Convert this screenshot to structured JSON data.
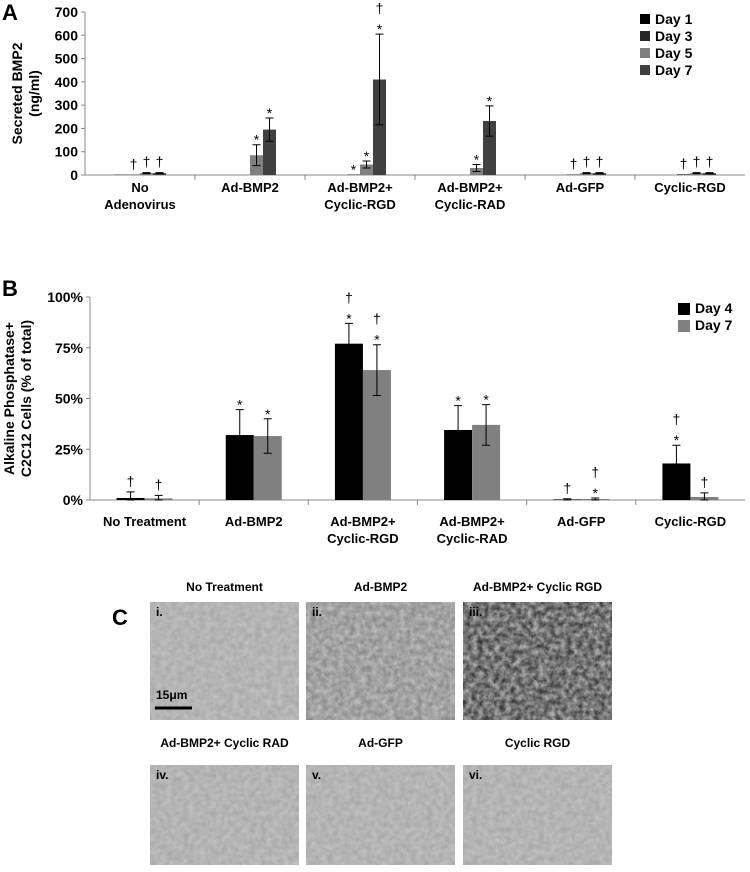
{
  "panel_labels": [
    "A",
    "B",
    "C"
  ],
  "chart_data": [
    {
      "type": "bar",
      "ylabel": "Secreted BMP2\n(ng/ml)",
      "categories": [
        "No\nAdenovirus",
        "Ad-BMP2",
        "Ad-BMP2+\nCyclic-RGD",
        "Ad-BMP2+\nCyclic-RAD",
        "Ad-GFP",
        "Cyclic-RGD"
      ],
      "ylim": [
        0,
        700
      ],
      "yticks": [
        0,
        100,
        200,
        300,
        400,
        500,
        600,
        700
      ],
      "legend": "top-right",
      "series": [
        {
          "name": "Day 1",
          "color": "#000000",
          "values": [
            1,
            0,
            0,
            0,
            0,
            0
          ],
          "errors": [
            null,
            null,
            null,
            null,
            null,
            null
          ],
          "markers": [
            null,
            null,
            null,
            null,
            null,
            null
          ]
        },
        {
          "name": "Day 3",
          "color": "#262626",
          "values": [
            1,
            0,
            2,
            0,
            2,
            3
          ],
          "errors": [
            null,
            null,
            null,
            null,
            null,
            null
          ],
          "markers": [
            [
              "†"
            ],
            null,
            [
              "*"
            ],
            null,
            [
              "†"
            ],
            [
              "†"
            ]
          ]
        },
        {
          "name": "Day 5",
          "color": "#7f7f7f",
          "values": [
            8,
            85,
            45,
            30,
            8,
            8
          ],
          "errors": [
            2,
            45,
            15,
            15,
            2,
            2
          ],
          "markers": [
            [
              "†"
            ],
            [
              "*"
            ],
            [
              "*"
            ],
            [
              "*"
            ],
            [
              "†"
            ],
            [
              "†"
            ]
          ]
        },
        {
          "name": "Day 7",
          "color": "#404040",
          "values": [
            8,
            195,
            410,
            232,
            8,
            8
          ],
          "errors": [
            2,
            50,
            195,
            65,
            2,
            2
          ],
          "markers": [
            [
              "†"
            ],
            [
              "*"
            ],
            [
              "†",
              "*"
            ],
            [
              "*"
            ],
            [
              "†"
            ],
            [
              "†"
            ]
          ]
        }
      ]
    },
    {
      "type": "bar",
      "ylabel": "Alkaline Phosphatase+\nC2C12 Cells (% of total)",
      "categories": [
        "No Treatment",
        "Ad-BMP2",
        "Ad-BMP2+\nCyclic-RGD",
        "Ad-BMP2+\nCyclic-RAD",
        "Ad-GFP",
        "Cyclic-RGD"
      ],
      "ylim": [
        0,
        100
      ],
      "yticks": [
        {
          "value": 0,
          "label": "0%"
        },
        {
          "value": 25,
          "label": "25%"
        },
        {
          "value": 50,
          "label": "50%"
        },
        {
          "value": 75,
          "label": "75%"
        },
        {
          "value": 100,
          "label": "100%"
        }
      ],
      "legend": "top-right",
      "series": [
        {
          "name": "Day 4",
          "color": "#000000",
          "values": [
            1,
            32,
            77,
            34.5,
            0.3,
            18
          ],
          "errors": [
            3,
            12.5,
            10,
            12,
            0.3,
            9
          ],
          "markers": [
            [
              "†"
            ],
            [
              "*"
            ],
            [
              "†",
              "*"
            ],
            [
              "*"
            ],
            [
              "†"
            ],
            [
              "†",
              "*"
            ]
          ]
        },
        {
          "name": "Day 7",
          "color": "#808080",
          "values": [
            0.8,
            31.5,
            64,
            37,
            0.5,
            1.5
          ],
          "errors": [
            1.5,
            8.5,
            12.5,
            10,
            0.5,
            2
          ],
          "markers": [
            [
              "†"
            ],
            [
              "*"
            ],
            [
              "†",
              "*"
            ],
            [
              "*"
            ],
            [
              "†",
              "*"
            ],
            [
              "†"
            ]
          ]
        }
      ]
    }
  ],
  "micrographs": [
    {
      "title": "No Treatment",
      "numeral": "i."
    },
    {
      "title": "Ad-BMP2",
      "numeral": "ii."
    },
    {
      "title": "Ad-BMP2+ Cyclic RGD",
      "numeral": "iii."
    },
    {
      "title": "Ad-BMP2+ Cyclic RAD",
      "numeral": "iv."
    },
    {
      "title": "Ad-GFP",
      "numeral": "v."
    },
    {
      "title": "Cyclic RGD",
      "numeral": "vi."
    }
  ],
  "scale_bar": "15μm"
}
